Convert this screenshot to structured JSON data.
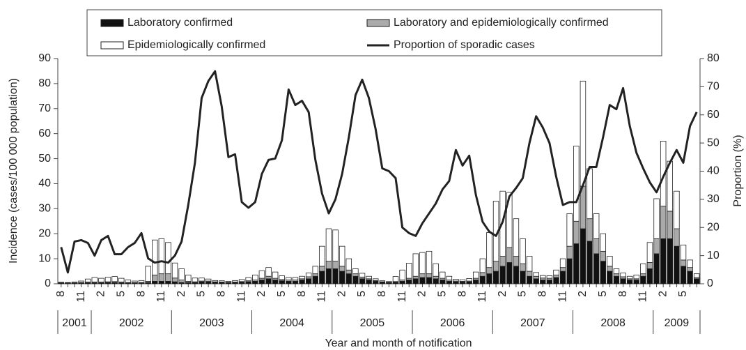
{
  "chart_data": {
    "type": "bar",
    "stacked": true,
    "x_label": "Year and month of notification",
    "y_label": "Incidence (cases/100 000 population)",
    "y2_label": "Proportion (%)",
    "categories": [
      "8",
      null,
      null,
      "11",
      null,
      null,
      "2",
      null,
      null,
      "5",
      null,
      null,
      "8",
      null,
      null,
      "11",
      null,
      null,
      "2",
      null,
      null,
      "5",
      null,
      null,
      "8",
      null,
      null,
      "11",
      null,
      null,
      "2",
      null,
      null,
      "5",
      null,
      null,
      "8",
      null,
      null,
      "11",
      null,
      null,
      "2",
      null,
      null,
      "5",
      null,
      null,
      "8",
      null,
      null,
      "11",
      null,
      null,
      "2",
      null,
      null,
      "5",
      null,
      null,
      "8",
      null,
      null,
      "11",
      null,
      null,
      "2",
      null,
      null,
      "5",
      null,
      null,
      "8",
      null,
      null,
      "11",
      null,
      null,
      "2",
      null,
      null,
      "5",
      null,
      null,
      "8",
      null,
      null,
      "11",
      null,
      null,
      "2",
      null,
      null,
      "5",
      null,
      null
    ],
    "x_groups": [
      {
        "label": "2001",
        "months": 5
      },
      {
        "label": "2002",
        "months": 12
      },
      {
        "label": "2003",
        "months": 12
      },
      {
        "label": "2004",
        "months": 12
      },
      {
        "label": "2005",
        "months": 12
      },
      {
        "label": "2006",
        "months": 12
      },
      {
        "label": "2007",
        "months": 12
      },
      {
        "label": "2008",
        "months": 12
      },
      {
        "label": "2009",
        "months": 7
      }
    ],
    "series": [
      {
        "name": "Laboratory confirmed",
        "color": "#111111",
        "values": [
          0.3,
          0.2,
          0.3,
          0.3,
          0.4,
          0.4,
          0.4,
          0.5,
          0.5,
          0.4,
          0.3,
          0.3,
          0.3,
          0.5,
          1,
          1,
          1,
          0.8,
          0.5,
          0.5,
          0.5,
          0.8,
          0.8,
          0.6,
          0.5,
          0.4,
          0.5,
          0.6,
          0.8,
          1,
          1.5,
          2,
          1.5,
          1.2,
          1,
          1,
          1.5,
          2,
          3,
          5,
          6,
          6,
          5,
          4,
          3,
          2,
          1.5,
          1,
          0.6,
          0.4,
          0.6,
          1,
          1.5,
          2,
          2.5,
          2.5,
          2,
          1.5,
          1,
          0.8,
          0.7,
          0.8,
          1.5,
          3,
          4,
          5,
          7,
          8.5,
          7,
          5,
          3,
          2,
          1.5,
          1.5,
          2.5,
          5,
          10,
          16,
          22,
          17,
          12,
          9,
          5,
          3,
          2,
          1.5,
          1.5,
          3,
          6,
          12,
          18,
          18,
          15,
          7,
          5,
          2
        ]
      },
      {
        "name": "Laboratory and epidemiologically confirmed",
        "color": "#aaaaaa",
        "values": [
          0.2,
          0.1,
          0.1,
          0.2,
          0.3,
          0.3,
          0.3,
          0.3,
          0.4,
          0.3,
          0.2,
          0.2,
          0.2,
          0.5,
          2.5,
          3,
          3,
          1.5,
          1,
          0.5,
          0.3,
          0.3,
          0.3,
          0.2,
          0.2,
          0.2,
          0.2,
          0.3,
          0.4,
          0.5,
          0.7,
          1,
          0.7,
          0.5,
          0.5,
          0.5,
          0.5,
          0.8,
          1,
          2,
          3,
          3,
          2,
          1.5,
          1,
          0.7,
          0.5,
          0.3,
          0.2,
          0.2,
          0.3,
          0.5,
          0.7,
          1,
          1.5,
          1.5,
          1,
          0.7,
          0.5,
          0.3,
          0.3,
          0.3,
          0.7,
          1.5,
          2.5,
          4,
          4,
          6,
          4,
          3,
          2,
          1,
          0.8,
          0.7,
          1,
          1.5,
          5,
          9,
          17,
          9,
          6,
          4,
          2,
          1,
          0.8,
          0.5,
          0.5,
          1,
          2.5,
          6,
          13,
          11,
          7,
          2.5,
          1.5,
          0.5
        ]
      },
      {
        "name": "Epidemiologically confirmed",
        "color": "#ffffff",
        "values": [
          0.1,
          0.2,
          0.3,
          0.6,
          1.2,
          1.8,
          1.5,
          1.8,
          2,
          1.5,
          1,
          0.6,
          0.8,
          6,
          14,
          14,
          12.5,
          6,
          4.5,
          2.5,
          1.5,
          1.2,
          0.8,
          0.5,
          0.5,
          0.4,
          0.6,
          0.8,
          1.3,
          2,
          3,
          3.5,
          2.5,
          1.5,
          1,
          1,
          1,
          1.5,
          3,
          8,
          13,
          12.5,
          8,
          4.5,
          2,
          1.5,
          1,
          0.7,
          0.4,
          0.3,
          2,
          4,
          6,
          9,
          8.5,
          9,
          5,
          2.5,
          1.5,
          0.7,
          0.6,
          1,
          2.5,
          5.5,
          14,
          24,
          26,
          22,
          15,
          10,
          6,
          1.5,
          1,
          1,
          2,
          3.5,
          13,
          30,
          42,
          20,
          10,
          7,
          4,
          2,
          1.5,
          1,
          1.5,
          4,
          8,
          16,
          26,
          20,
          15,
          6,
          3,
          1.5
        ]
      },
      {
        "name": "Proportion of sporadic cases",
        "type": "line",
        "axis": "y2",
        "color": "#222222",
        "values": [
          13,
          4,
          15,
          15.5,
          14.5,
          10,
          15.5,
          17,
          10.5,
          10.5,
          13,
          14.5,
          18,
          9,
          7.5,
          8,
          7.5,
          10,
          15,
          28,
          43,
          66,
          72,
          75.5,
          63,
          45,
          46,
          29,
          27,
          29,
          39,
          44,
          44.5,
          51,
          69,
          63.5,
          65,
          61,
          44,
          32,
          25,
          30,
          39,
          52,
          67,
          72.5,
          66,
          55,
          41,
          40,
          37.5,
          20,
          18,
          17,
          21.5,
          25,
          28.5,
          33.5,
          36.5,
          47.5,
          42,
          45.5,
          31.5,
          22,
          18.5,
          17,
          22,
          31,
          34,
          37.5,
          50,
          59.5,
          55.5,
          50,
          38,
          28,
          29,
          29,
          35,
          41.5,
          41.5,
          52,
          63.5,
          62,
          69.5,
          56,
          46.5,
          41,
          36,
          32.5,
          38,
          43,
          47.5,
          43,
          56,
          61
        ]
      }
    ],
    "ylim": [
      0,
      90
    ],
    "yticks": [
      0,
      10,
      20,
      30,
      40,
      50,
      60,
      70,
      80,
      90
    ],
    "y2lim": [
      0,
      80
    ],
    "y2ticks": [
      0,
      10,
      20,
      30,
      40,
      50,
      60,
      70,
      80
    ],
    "legend": "top"
  }
}
